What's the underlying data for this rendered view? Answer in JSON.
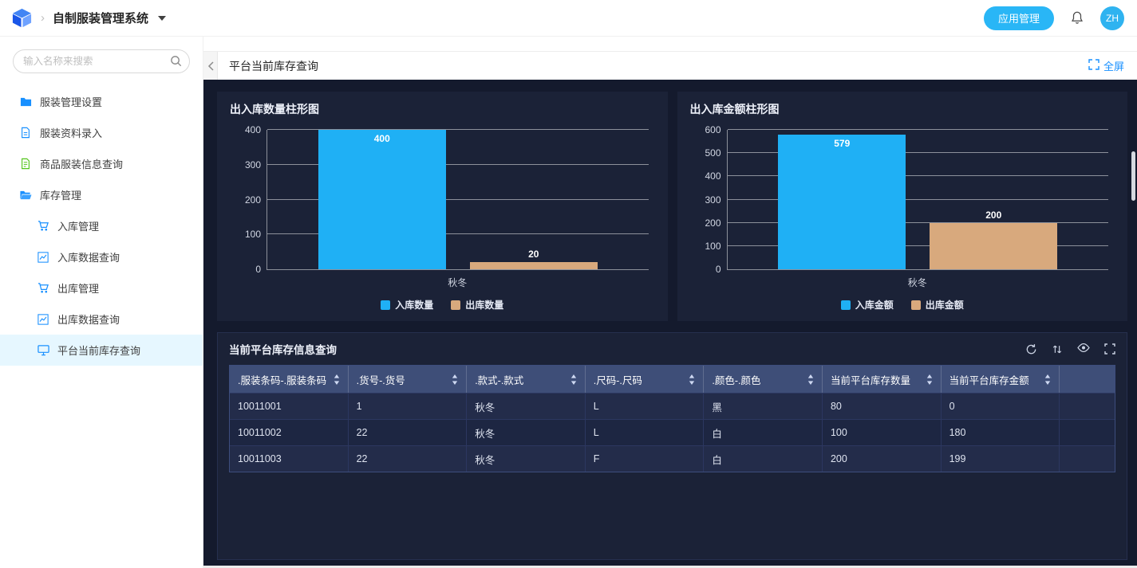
{
  "header": {
    "breadcrumb_chevron": "›",
    "app_title": "自制服装管理系统",
    "app_manage_button": "应用管理",
    "avatar_text": "ZH"
  },
  "sidebar": {
    "search_placeholder": "输入名称来搜索",
    "items": [
      {
        "label": "服装管理设置",
        "icon": "folder",
        "level": 1
      },
      {
        "label": "服装资料录入",
        "icon": "file",
        "level": 1
      },
      {
        "label": "商品服装信息查询",
        "icon": "file-list",
        "level": 1,
        "icon_color": "#52c41a"
      },
      {
        "label": "库存管理",
        "icon": "folder-open",
        "level": 1
      },
      {
        "label": "入库管理",
        "icon": "cart",
        "level": 2
      },
      {
        "label": "入库数据查询",
        "icon": "chart",
        "level": 2
      },
      {
        "label": "出库管理",
        "icon": "cart",
        "level": 2
      },
      {
        "label": "出库数据查询",
        "icon": "chart",
        "level": 2
      },
      {
        "label": "平台当前库存查询",
        "icon": "monitor",
        "level": 2,
        "active": true
      }
    ]
  },
  "page": {
    "title": "平台当前库存查询",
    "fullscreen_label": "全屏"
  },
  "chart_data": [
    {
      "type": "bar",
      "title": "出入库数量柱形图",
      "categories": [
        "秋冬"
      ],
      "series": [
        {
          "name": "入库数量",
          "values": [
            400
          ],
          "color": "#1fb0f5"
        },
        {
          "name": "出库数量",
          "values": [
            20
          ],
          "color": "#d8a97d"
        }
      ],
      "ylim": [
        0,
        400
      ],
      "yticks": [
        0,
        100,
        200,
        300,
        400
      ],
      "grid": true,
      "legend_position": "bottom"
    },
    {
      "type": "bar",
      "title": "出入库金额柱形图",
      "categories": [
        "秋冬"
      ],
      "series": [
        {
          "name": "入库金额",
          "values": [
            579
          ],
          "color": "#1fb0f5"
        },
        {
          "name": "出库金额",
          "values": [
            200
          ],
          "color": "#d8a97d"
        }
      ],
      "ylim": [
        0,
        600
      ],
      "yticks": [
        0,
        100,
        200,
        300,
        400,
        500,
        600
      ],
      "grid": true,
      "legend_position": "bottom"
    }
  ],
  "table": {
    "title": "当前平台库存信息查询",
    "columns": [
      ".服装条码-.服装条码",
      ".货号-.货号",
      ".款式-.款式",
      ".尺码-.尺码",
      ".颜色-.颜色",
      "当前平台库存数量",
      "当前平台库存金额"
    ],
    "rows": [
      [
        "10011001",
        "1",
        "秋冬",
        "L",
        "黑",
        "80",
        "0"
      ],
      [
        "10011002",
        "22",
        "秋冬",
        "L",
        "白",
        "100",
        "180"
      ],
      [
        "10011003",
        "22",
        "秋冬",
        "F",
        "白",
        "200",
        "199"
      ]
    ]
  },
  "colors": {
    "accent": "#1890ff",
    "app_button": "#29b6f6",
    "bar_in": "#1fb0f5",
    "bar_out": "#d8a97d"
  }
}
